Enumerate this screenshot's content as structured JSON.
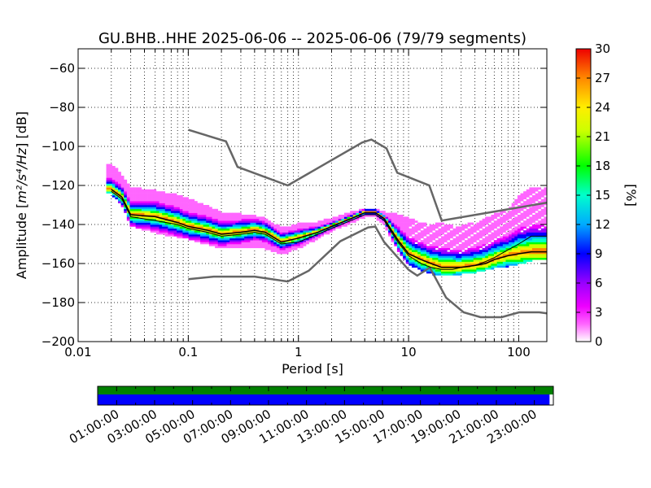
{
  "title": "GU.BHB..HHE   2025-06-06 -- 2025-06-06  (79/79 segments)",
  "xlabel": "Period [s]",
  "ylabel_prefix": "Amplitude [",
  "ylabel_unit": "m²/s⁴/Hz",
  "ylabel_suffix": "] [dB]",
  "colorbar_label": "[%]",
  "colors": {
    "model_lines": "#666666",
    "mode_line": "#000000",
    "grid": "#333333",
    "coverage_top": "#008000",
    "coverage_bottom": "#0000ff"
  },
  "chart_data": [
    {
      "type": "heatmap",
      "title": "GU.BHB..HHE   2025-06-06 -- 2025-06-06  (79/79 segments)",
      "xlabel": "Period [s]",
      "xscale": "log",
      "xlim": [
        0.01,
        180
      ],
      "x_ticks": [
        0.01,
        0.1,
        1,
        10,
        100
      ],
      "x_tick_labels": [
        "0.01",
        "0.1",
        "1",
        "10",
        "100"
      ],
      "ylim": [
        -200,
        -50
      ],
      "y_ticks": [
        -200,
        -180,
        -160,
        -140,
        -120,
        -100,
        -80,
        -60
      ],
      "y_tick_labels": [
        "−200",
        "−180",
        "−160",
        "−140",
        "−120",
        "−100",
        "−80",
        "−60"
      ],
      "grid": true,
      "colorbar": {
        "label": "[%]",
        "range": [
          0,
          30
        ],
        "ticks": [
          0,
          3,
          6,
          9,
          12,
          15,
          18,
          21,
          24,
          27,
          30
        ],
        "tick_labels": [
          "0",
          "3",
          "6",
          "9",
          "12",
          "15",
          "18",
          "21",
          "24",
          "27",
          "30"
        ]
      },
      "series": [
        {
          "role": "high-noise-model",
          "x": [
            0.1,
            0.22,
            0.28,
            0.8,
            3.8,
            4.6,
            6.3,
            7.9,
            15.4,
            20,
            354.8
          ],
          "y": [
            -91.5,
            -97.4,
            -110.5,
            -120,
            -98,
            -96.5,
            -101,
            -113.5,
            -120,
            -138,
            -126
          ]
        },
        {
          "role": "low-noise-model",
          "x": [
            0.1,
            0.17,
            0.4,
            0.8,
            1.24,
            2.4,
            4.3,
            5,
            6,
            10,
            12,
            15.6,
            21.9,
            31.6,
            45,
            70,
            101,
            154,
            328
          ],
          "y": [
            -168,
            -166.7,
            -166.7,
            -169.2,
            -163.7,
            -148.6,
            -141.5,
            -141.1,
            -149,
            -163.2,
            -166.2,
            -162.1,
            -177.5,
            -185,
            -187.5,
            -187.5,
            -185,
            -185,
            -187.5
          ]
        },
        {
          "role": "mode",
          "x": [
            0.02,
            0.025,
            0.03,
            0.05,
            0.08,
            0.1,
            0.15,
            0.2,
            0.3,
            0.4,
            0.5,
            0.7,
            1,
            1.5,
            2,
            3,
            4,
            5,
            6,
            7,
            8,
            10,
            13,
            16,
            20,
            25,
            30,
            40,
            50,
            60,
            80,
            100,
            130,
            180
          ],
          "y": [
            -122,
            -126,
            -135,
            -136,
            -139,
            -141,
            -143,
            -145,
            -144,
            -143,
            -144,
            -149,
            -147,
            -144,
            -141,
            -137,
            -134,
            -134,
            -137,
            -143,
            -148,
            -155,
            -158,
            -160,
            -162,
            -162,
            -162,
            -161,
            -160,
            -158,
            -156,
            -155,
            -154,
            -154
          ]
        },
        {
          "role": "mean",
          "x": [
            0.02,
            0.025,
            0.03,
            0.05,
            0.08,
            0.1,
            0.15,
            0.2,
            0.3,
            0.4,
            0.5,
            0.7,
            1,
            1.5,
            2,
            3,
            4,
            5,
            6,
            7,
            8,
            10,
            13,
            16,
            20,
            25,
            30,
            40,
            50,
            60,
            80,
            100,
            130,
            180
          ],
          "y": [
            -123,
            -127,
            -136,
            -138,
            -140,
            -142,
            -144,
            -146,
            -145,
            -144,
            -145,
            -150,
            -149,
            -145,
            -142,
            -138,
            -135,
            -135,
            -138,
            -144,
            -149,
            -156,
            -160,
            -162,
            -163,
            -163,
            -162,
            -161,
            -159,
            -157,
            -153,
            -150,
            -146,
            -146
          ]
        },
        {
          "role": "distribution-upper",
          "x": [
            0.02,
            0.025,
            0.03,
            0.05,
            0.08,
            0.1,
            0.15,
            0.2,
            0.3,
            0.4,
            0.5,
            0.7,
            1,
            1.5,
            2,
            3,
            4,
            5,
            6,
            7,
            8,
            10,
            13,
            16,
            20,
            25,
            30,
            40,
            50,
            60,
            80,
            100,
            130,
            180
          ],
          "y": [
            -110,
            -116,
            -122,
            -124,
            -126,
            -128,
            -132,
            -135,
            -136,
            -137,
            -138,
            -143,
            -141,
            -140,
            -138,
            -135,
            -133,
            -133,
            -135,
            -135,
            -136,
            -138,
            -140,
            -142,
            -140,
            -142,
            -142,
            -140,
            -138,
            -136,
            -134,
            -126,
            -122,
            -122
          ]
        },
        {
          "role": "distribution-lower",
          "x": [
            0.02,
            0.025,
            0.03,
            0.05,
            0.08,
            0.1,
            0.15,
            0.2,
            0.3,
            0.4,
            0.5,
            0.7,
            1,
            1.5,
            2,
            3,
            4,
            5,
            6,
            7,
            8,
            10,
            13,
            16,
            20,
            25,
            30,
            40,
            50,
            60,
            80,
            100,
            130,
            180
          ],
          "y": [
            -124,
            -130,
            -140,
            -144,
            -146,
            -147,
            -150,
            -152,
            -152,
            -152,
            -152,
            -155,
            -152,
            -147,
            -143,
            -139,
            -136,
            -136,
            -140,
            -147,
            -153,
            -160,
            -163,
            -165,
            -166,
            -166,
            -165,
            -164,
            -163,
            -162,
            -161,
            -160,
            -158,
            -158
          ]
        }
      ]
    },
    {
      "type": "bar",
      "role": "data-coverage",
      "x_ticks": [
        "01:00:00",
        "03:00:00",
        "05:00:00",
        "07:00:00",
        "09:00:00",
        "11:00:00",
        "13:00:00",
        "15:00:00",
        "17:00:00",
        "19:00:00",
        "21:00:00",
        "23:00:00"
      ],
      "series": [
        {
          "color": "#008000",
          "start_hour": 0,
          "end_hour": 24
        },
        {
          "color": "#0000ff",
          "start_hour": 0,
          "end_hour": 23.8
        }
      ]
    }
  ]
}
